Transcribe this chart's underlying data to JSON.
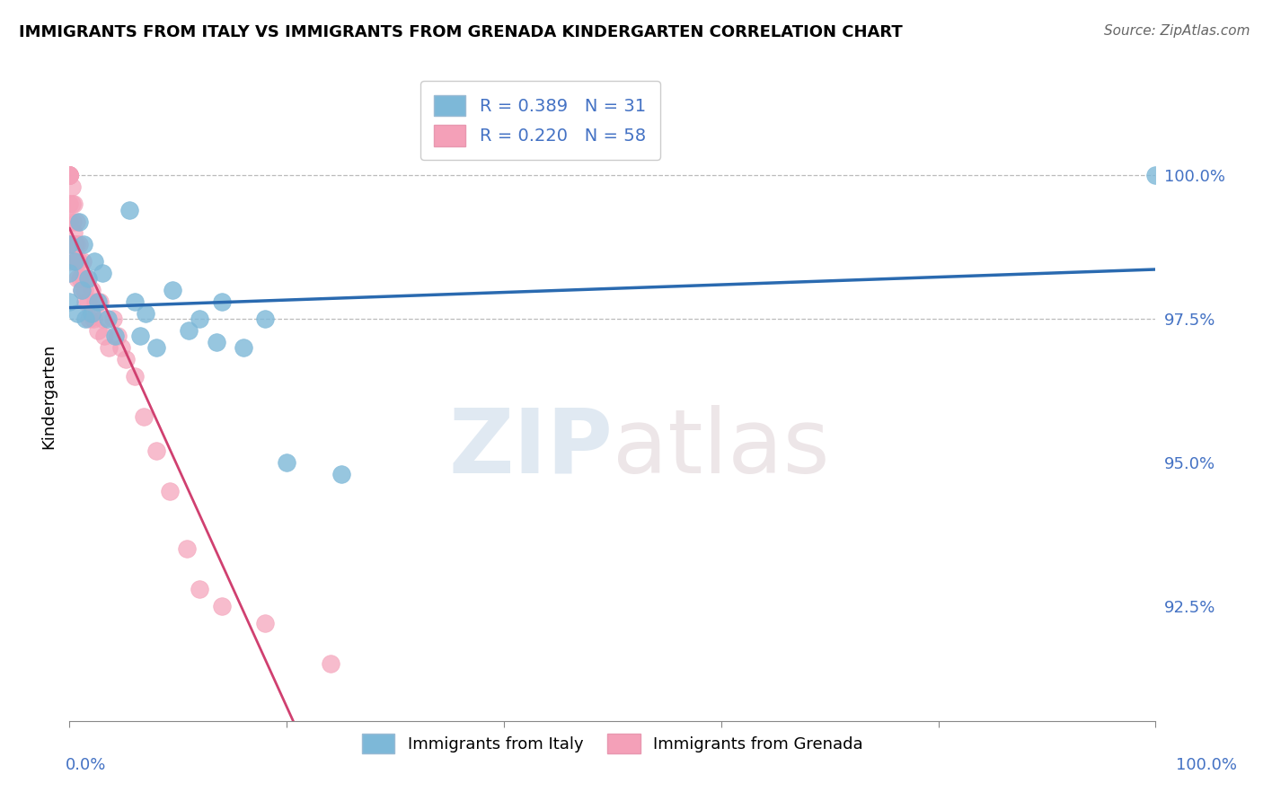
{
  "title": "IMMIGRANTS FROM ITALY VS IMMIGRANTS FROM GRENADA KINDERGARTEN CORRELATION CHART",
  "source": "Source: ZipAtlas.com",
  "ylabel": "Kindergarten",
  "watermark": "ZIPatlas",
  "italy_R": 0.389,
  "italy_N": 31,
  "grenada_R": 0.22,
  "grenada_N": 58,
  "italy_color": "#7db8d8",
  "grenada_color": "#f4a0b8",
  "italy_line_color": "#2a6ab0",
  "grenada_line_color": "#d04070",
  "xmin": 0.0,
  "xmax": 100.0,
  "ymin": 90.5,
  "ymax": 101.8,
  "yticks": [
    92.5,
    95.0,
    97.5,
    100.0
  ],
  "ytick_labels": [
    "92.5%",
    "95.0%",
    "97.5%",
    "100.0%"
  ],
  "hlines": [
    97.5,
    100.0
  ],
  "italy_x": [
    0.0,
    0.0,
    0.0,
    0.5,
    0.7,
    0.9,
    1.1,
    1.3,
    1.5,
    1.7,
    2.0,
    2.3,
    2.6,
    3.0,
    3.5,
    4.2,
    5.5,
    6.0,
    6.5,
    7.0,
    8.0,
    9.5,
    11.0,
    12.0,
    13.5,
    14.0,
    16.0,
    18.0,
    20.0,
    25.0,
    100.0
  ],
  "italy_y": [
    98.8,
    98.3,
    97.8,
    98.5,
    97.6,
    99.2,
    98.0,
    98.8,
    97.5,
    98.2,
    97.6,
    98.5,
    97.8,
    98.3,
    97.5,
    97.2,
    99.4,
    97.8,
    97.2,
    97.6,
    97.0,
    98.0,
    97.3,
    97.5,
    97.1,
    97.8,
    97.0,
    97.5,
    95.0,
    94.8,
    100.0
  ],
  "grenada_x": [
    0.0,
    0.0,
    0.0,
    0.0,
    0.0,
    0.0,
    0.0,
    0.0,
    0.0,
    0.0,
    0.0,
    0.0,
    0.0,
    0.0,
    0.2,
    0.2,
    0.3,
    0.35,
    0.4,
    0.4,
    0.5,
    0.55,
    0.6,
    0.6,
    0.7,
    0.75,
    0.85,
    0.9,
    1.0,
    1.1,
    1.2,
    1.3,
    1.4,
    1.5,
    1.6,
    1.7,
    1.8,
    2.0,
    2.2,
    2.4,
    2.6,
    2.8,
    3.0,
    3.2,
    3.6,
    4.0,
    4.4,
    4.8,
    5.2,
    6.0,
    6.8,
    8.0,
    9.2,
    10.8,
    12.0,
    14.0,
    18.0,
    24.0
  ],
  "grenada_y": [
    100.0,
    100.0,
    100.0,
    100.0,
    100.0,
    100.0,
    100.0,
    100.0,
    100.0,
    100.0,
    99.5,
    99.2,
    98.8,
    98.5,
    99.8,
    99.5,
    99.2,
    98.8,
    99.5,
    99.0,
    98.8,
    98.5,
    99.2,
    98.8,
    98.5,
    98.2,
    98.8,
    98.5,
    98.2,
    98.0,
    98.5,
    98.2,
    98.0,
    97.8,
    98.2,
    97.8,
    97.5,
    98.0,
    97.5,
    97.8,
    97.3,
    97.8,
    97.5,
    97.2,
    97.0,
    97.5,
    97.2,
    97.0,
    96.8,
    96.5,
    95.8,
    95.2,
    94.5,
    93.5,
    92.8,
    92.5,
    92.2,
    91.5
  ]
}
